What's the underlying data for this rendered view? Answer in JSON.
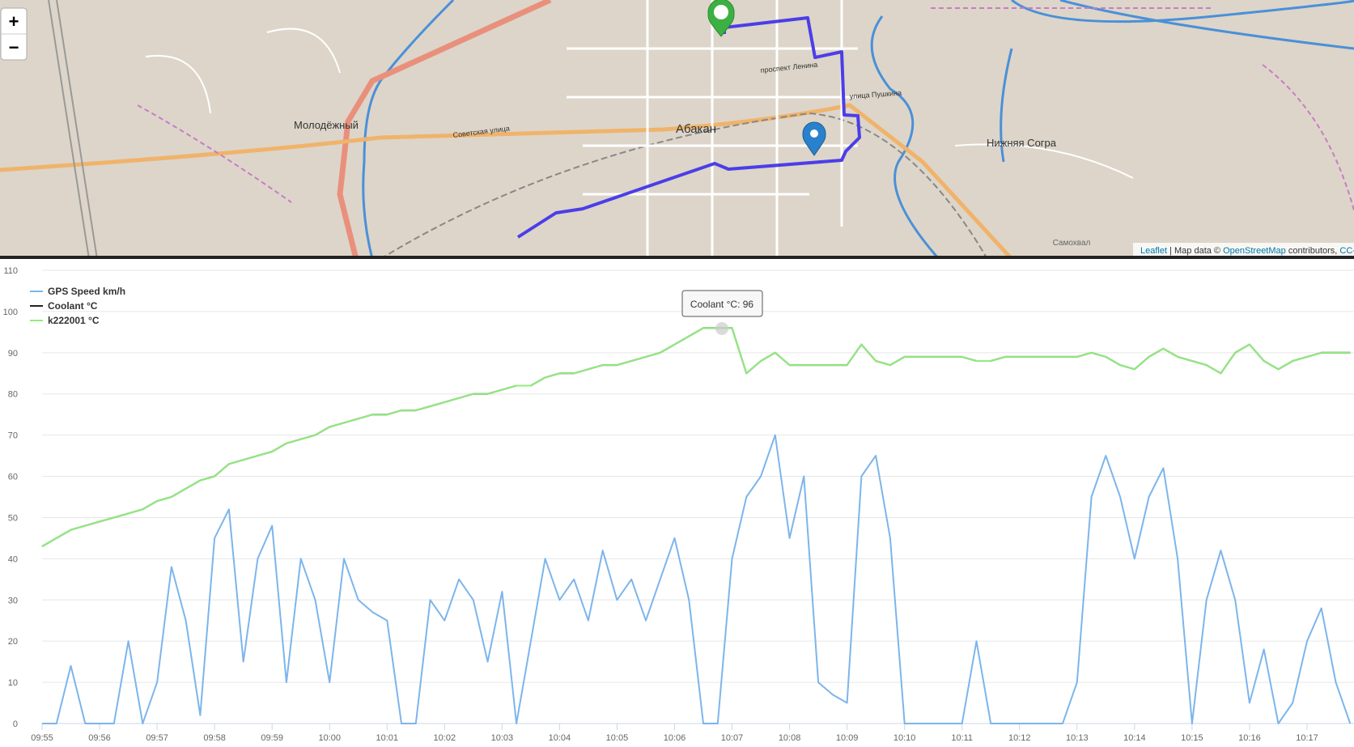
{
  "map": {
    "zoom_in": "+",
    "zoom_out": "−",
    "places": [
      "Молодёжный",
      "Абакан",
      "Нижняя Согра",
      "Самохвал"
    ],
    "streets": [
      "проспект Ленина",
      "улица Пушкина",
      "Советская улица"
    ],
    "attribution": {
      "leaflet": "Leaflet",
      "map_data": "| Map data ©",
      "osm": "OpenStreetMap",
      "contributors": "contributors,",
      "license": "CC-"
    }
  },
  "chart_data": {
    "type": "line",
    "tooltip": "Coolant °C: 96",
    "x": [
      "09:55:00",
      "09:55:15",
      "09:55:30",
      "09:55:45",
      "09:56:00",
      "09:56:15",
      "09:56:30",
      "09:56:45",
      "09:57:00",
      "09:57:15",
      "09:57:30",
      "09:57:45",
      "09:58:00",
      "09:58:15",
      "09:58:30",
      "09:58:45",
      "09:59:00",
      "09:59:15",
      "09:59:30",
      "09:59:45",
      "10:00:00",
      "10:00:15",
      "10:00:30",
      "10:00:45",
      "10:01:00",
      "10:01:15",
      "10:01:30",
      "10:01:45",
      "10:02:00",
      "10:02:15",
      "10:02:30",
      "10:02:45",
      "10:03:00",
      "10:03:15",
      "10:03:30",
      "10:03:45",
      "10:04:00",
      "10:04:15",
      "10:04:30",
      "10:04:45",
      "10:05:00",
      "10:05:15",
      "10:05:30",
      "10:05:45",
      "10:06:00",
      "10:06:15",
      "10:06:30",
      "10:06:45",
      "10:07:00",
      "10:07:15",
      "10:07:30",
      "10:07:45",
      "10:08:00",
      "10:08:15",
      "10:08:30",
      "10:08:45",
      "10:09:00",
      "10:09:15",
      "10:09:30",
      "10:09:45",
      "10:10:00",
      "10:10:15",
      "10:10:30",
      "10:10:45",
      "10:11:00",
      "10:11:15",
      "10:11:30",
      "10:11:45",
      "10:12:00",
      "10:12:15",
      "10:12:30",
      "10:12:45",
      "10:13:00",
      "10:13:15",
      "10:13:30",
      "10:13:45",
      "10:14:00",
      "10:14:15",
      "10:14:30",
      "10:14:45",
      "10:15:00",
      "10:15:15",
      "10:15:30",
      "10:15:45",
      "10:16:00",
      "10:16:15",
      "10:16:30",
      "10:16:45",
      "10:17:00",
      "10:17:15",
      "10:17:30",
      "10:17:45"
    ],
    "series": [
      {
        "name": "GPS Speed km/h",
        "color": "#7cb5ec",
        "values": [
          0,
          0,
          14,
          0,
          0,
          0,
          20,
          0,
          10,
          38,
          25,
          2,
          45,
          52,
          15,
          40,
          48,
          10,
          40,
          30,
          10,
          40,
          30,
          27,
          25,
          0,
          0,
          30,
          25,
          35,
          30,
          15,
          32,
          0,
          20,
          40,
          30,
          35,
          25,
          42,
          30,
          35,
          25,
          35,
          45,
          30,
          0,
          0,
          40,
          55,
          60,
          70,
          45,
          60,
          10,
          7,
          5,
          60,
          65,
          45,
          0,
          0,
          0,
          0,
          0,
          20,
          0,
          0,
          0,
          0,
          0,
          0,
          10,
          55,
          65,
          55,
          40,
          55,
          62,
          40,
          0,
          30,
          42,
          30,
          5,
          18,
          0,
          5,
          20,
          28,
          10,
          0
        ]
      },
      {
        "name": "Coolant °C",
        "color": "#222222",
        "values": [
          43,
          45,
          47,
          48,
          49,
          50,
          51,
          52,
          54,
          55,
          57,
          59,
          60,
          63,
          64,
          65,
          66,
          68,
          69,
          70,
          72,
          73,
          74,
          75,
          75,
          76,
          76,
          77,
          78,
          79,
          80,
          80,
          81,
          82,
          82,
          84,
          85,
          85,
          86,
          87,
          87,
          88,
          89,
          90,
          92,
          94,
          96,
          96,
          96,
          85,
          88,
          90,
          87,
          87,
          87,
          87,
          87,
          92,
          88,
          87,
          89,
          89,
          89,
          89,
          89,
          88,
          88,
          89,
          89,
          89,
          89,
          89,
          89,
          90,
          89,
          87,
          86,
          89,
          91,
          89,
          88,
          87,
          85,
          90,
          92,
          88,
          86,
          88,
          89,
          90,
          90,
          90
        ]
      },
      {
        "name": "k222001 °C",
        "color": "#90ed7d",
        "values": [
          43,
          45,
          47,
          48,
          49,
          50,
          51,
          52,
          54,
          55,
          57,
          59,
          60,
          63,
          64,
          65,
          66,
          68,
          69,
          70,
          72,
          73,
          74,
          75,
          75,
          76,
          76,
          77,
          78,
          79,
          80,
          80,
          81,
          82,
          82,
          84,
          85,
          85,
          86,
          87,
          87,
          88,
          89,
          90,
          92,
          94,
          96,
          96,
          96,
          85,
          88,
          90,
          87,
          87,
          87,
          87,
          87,
          92,
          88,
          87,
          89,
          89,
          89,
          89,
          89,
          88,
          88,
          89,
          89,
          89,
          89,
          89,
          89,
          90,
          89,
          87,
          86,
          89,
          91,
          89,
          88,
          87,
          85,
          90,
          92,
          88,
          86,
          88,
          89,
          90,
          90,
          90
        ]
      }
    ],
    "xlim": [
      "09:55",
      "10:17:49"
    ],
    "xticks": [
      "09:55",
      "09:56",
      "09:57",
      "09:58",
      "09:59",
      "10:00",
      "10:01",
      "10:02",
      "10:03",
      "10:04",
      "10:05",
      "10:06",
      "10:07",
      "10:08",
      "10:09",
      "10:10",
      "10:11",
      "10:12",
      "10:13",
      "10:14",
      "10:15",
      "10:16",
      "10:17"
    ],
    "ylim": [
      0,
      110
    ],
    "yticks": [
      0,
      10,
      20,
      30,
      40,
      50,
      60,
      70,
      80,
      90,
      100,
      110
    ],
    "grid": true,
    "legend": "top-left"
  }
}
